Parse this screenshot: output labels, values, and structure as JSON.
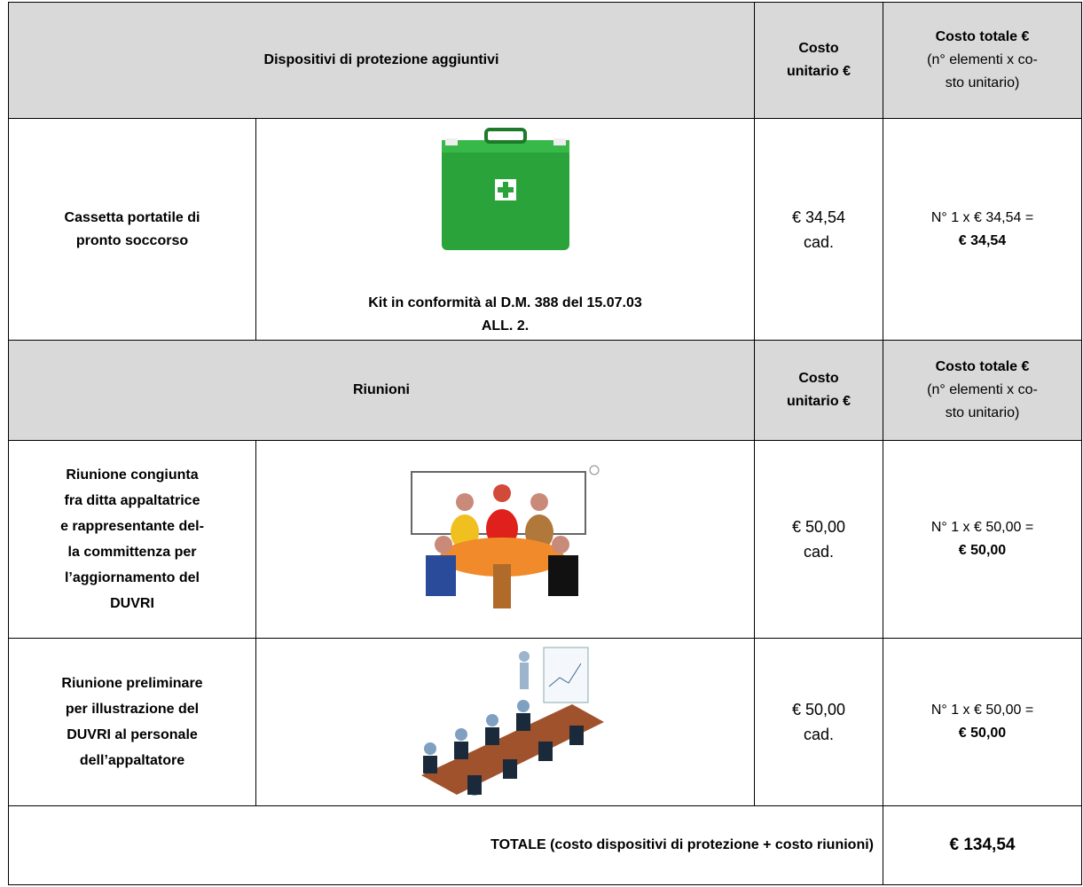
{
  "sections": [
    {
      "header": {
        "title": "Dispositivi di protezione aggiuntivi",
        "unit_cost": [
          "Costo",
          "unitario €"
        ],
        "total_cost": {
          "title": "Costo totale €",
          "note": [
            "(n° elementi x co-",
            "sto unitario)"
          ]
        }
      },
      "rows": [
        {
          "item": [
            "Cassetta portatile di",
            "pronto soccorso"
          ],
          "caption": [
            "Kit in conformità al D.M. 388 del 15.07.03",
            "ALL. 2."
          ],
          "unit_cost": [
            "€ 34,54",
            "cad."
          ],
          "total": {
            "formula": "N° 1 x € 34,54 =",
            "amount": "€ 34,54"
          }
        }
      ]
    },
    {
      "header": {
        "title": "Riunioni",
        "unit_cost": [
          "Costo",
          "unitario €"
        ],
        "total_cost": {
          "title": "Costo totale €",
          "note": [
            "(n° elementi x co-",
            "sto unitario)"
          ]
        }
      },
      "rows": [
        {
          "item": [
            "Riunione congiunta",
            "fra ditta appaltatrice",
            "e rappresentante del-",
            "la committenza per",
            "l’aggiornamento del",
            "DUVRI"
          ],
          "unit_cost": [
            "€ 50,00",
            "cad."
          ],
          "total": {
            "formula": "N° 1 x € 50,00 =",
            "amount": "€ 50,00"
          }
        },
        {
          "item": [
            "Riunione preliminare",
            "per illustrazione del",
            "DUVRI al personale",
            "dell’appaltatore"
          ],
          "unit_cost": [
            "€ 50,00",
            "cad."
          ],
          "total": {
            "formula": "N° 1 x € 50,00 =",
            "amount": "€ 50,00"
          }
        }
      ]
    }
  ],
  "total": {
    "label": "TOTALE (costo dispositivi di protezione + costo riunioni)",
    "amount": "€ 134,54"
  }
}
